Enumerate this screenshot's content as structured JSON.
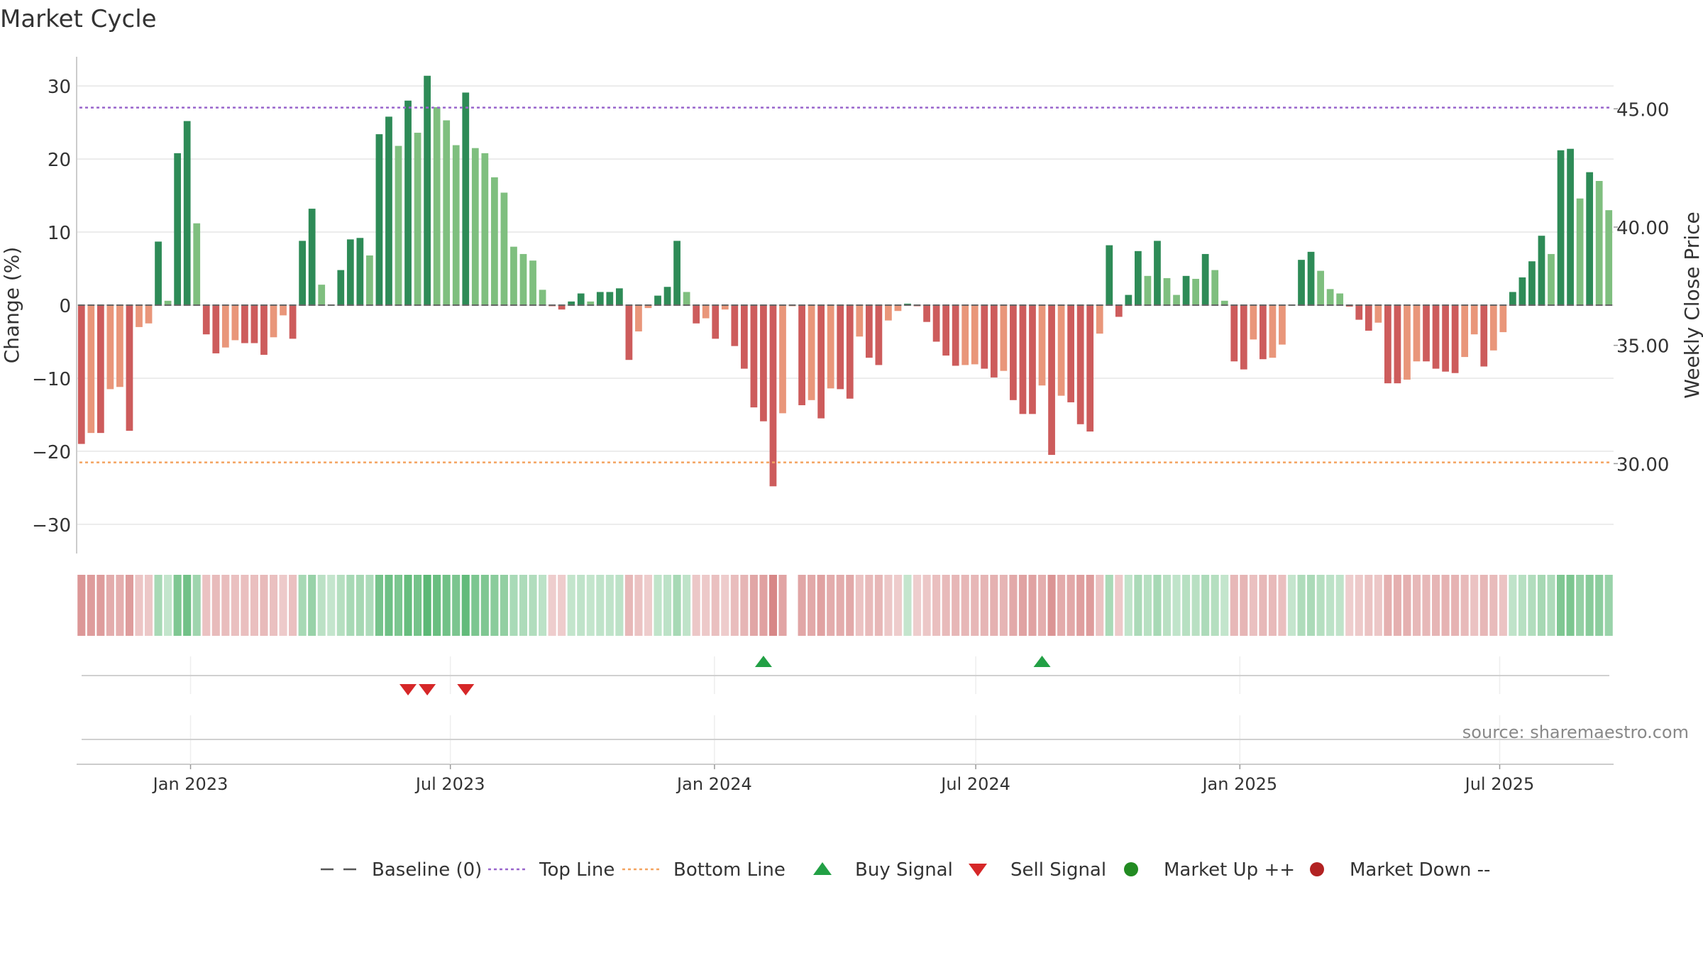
{
  "chart_data": {
    "type": "bar",
    "title": "Market Cycle",
    "ylabel": "Change (%)",
    "ylabel_right": "Weekly Close Price",
    "source": "source: sharemaestro.com",
    "ylim": [
      -34,
      34
    ],
    "ylim_right": [
      26.2,
      47.2
    ],
    "y_ticks": [
      30,
      20,
      10,
      0,
      -10,
      -20,
      -30
    ],
    "y_tick_labels": [
      "30",
      "20",
      "10",
      "0",
      "−10",
      "−20",
      "−30"
    ],
    "y_right_ticks": [
      45,
      40,
      35,
      30
    ],
    "y_right_tick_labels": [
      "45.00",
      "40.00",
      "35.00",
      "30.00"
    ],
    "x_start": "2022-10-17",
    "x_end": "2025-09-15",
    "x_ticks": [
      "2023-01-01",
      "2023-07-01",
      "2024-01-01",
      "2024-07-01",
      "2025-01-01",
      "2025-07-01"
    ],
    "x_tick_labels": [
      "Jan 2023",
      "Jul 2023",
      "Jan 2024",
      "Jul 2024",
      "Jan 2025",
      "Jul 2025"
    ],
    "top_line": 45.05,
    "bottom_line": 30.05,
    "weekly_change": [
      -19,
      -17.5,
      -17.5,
      -11.5,
      -11.2,
      -17.2,
      -3,
      -2.5,
      8.7,
      0.6,
      20.8,
      25.2,
      11.2,
      -4,
      -6.6,
      -5.8,
      -4.8,
      -5.2,
      -5.2,
      -6.8,
      -4.4,
      -1.4,
      -4.6,
      8.8,
      13.2,
      2.8,
      0.1,
      4.8,
      9,
      9.2,
      6.8,
      23.4,
      25.8,
      21.8,
      28,
      23.6,
      31.4,
      27.1,
      25.3,
      21.9,
      29.1,
      21.5,
      20.8,
      17.5,
      15.4,
      8,
      7,
      6.1,
      2.1,
      -0.1,
      -0.6,
      0.5,
      1.6,
      0.5,
      1.8,
      1.8,
      2.3,
      -7.5,
      -3.6,
      -0.4,
      1.3,
      2.5,
      8.8,
      1.8,
      -2.5,
      -1.8,
      -4.6,
      -0.6,
      -5.6,
      -8.7,
      -14,
      -15.9,
      -24.8,
      -14.8,
      -0.1,
      -13.7,
      -13,
      -15.5,
      -11.4,
      -11.5,
      -12.8,
      -4.3,
      -7.2,
      -8.2,
      -2.1,
      -0.8,
      0.2,
      -0.1,
      -2.3,
      -5,
      -6.9,
      -8.3,
      -8.2,
      -8.1,
      -8.7,
      -9.9,
      -9,
      -13,
      -14.9,
      -14.9,
      -11,
      -20.5,
      -12.4,
      -13.3,
      -16.3,
      -17.3,
      -3.9,
      8.2,
      -1.6,
      1.4,
      7.4,
      4,
      8.8,
      3.7,
      1.4,
      4,
      3.6,
      7,
      4.8,
      0.6,
      -7.7,
      -8.8,
      -4.7,
      -7.4,
      -7.2,
      -5.4,
      0.1,
      6.2,
      7.3,
      4.7,
      2.2,
      1.6,
      -0.2,
      -2,
      -3.5,
      -2.4,
      -10.7,
      -10.7,
      -10.2,
      -7.7,
      -7.7,
      -8.7,
      -9.1,
      -9.3,
      -7.1,
      -4,
      -8.4,
      -6.2,
      -3.7,
      1.8,
      3.8,
      6,
      9.5,
      7,
      21.2,
      21.4,
      14.6,
      18.2,
      17,
      13
    ],
    "sell_signal_weeks": [
      34,
      36,
      40
    ],
    "buy_signal_weeks": [
      71,
      100
    ],
    "missing_strip_weeks": [
      74
    ],
    "colors": {
      "strong_up": "#2e8b57",
      "weak_up": "#7fbf7f",
      "strong_down": "#cd5c5c",
      "weak_down": "#e9967a",
      "top_line": "#9966cc",
      "bottom_line": "#f4a460",
      "buy": "#22a045",
      "sell": "#d62728",
      "market_up": "#228b22",
      "market_down": "#b22222",
      "baseline": "#666666",
      "grid": "#e6e6e6"
    },
    "legend_position": "bottom-center",
    "legend": [
      {
        "label": "Baseline (0)",
        "marker": "dashed-line"
      },
      {
        "label": "Top Line",
        "marker": "dotted-line-purple"
      },
      {
        "label": "Bottom Line",
        "marker": "dotted-line-orange"
      },
      {
        "label": "Buy Signal",
        "marker": "triangle-up"
      },
      {
        "label": "Sell Signal",
        "marker": "triangle-down"
      },
      {
        "label": "Market Up ++",
        "marker": "circle-green"
      },
      {
        "label": "Market Down --",
        "marker": "circle-red"
      }
    ]
  }
}
